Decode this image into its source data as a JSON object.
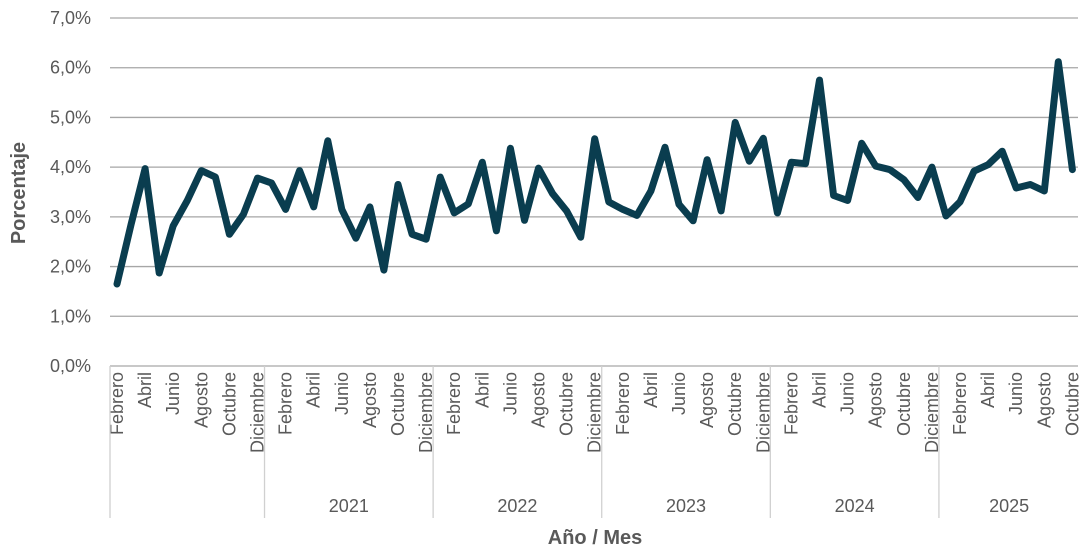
{
  "chart_data": {
    "type": "line",
    "xlabel": "Año / Mes",
    "ylabel": "Porcentaje",
    "ylim": [
      0,
      7
    ],
    "y_ticks": [
      "0,0%",
      "1,0%",
      "2,0%",
      "3,0%",
      "4,0%",
      "5,0%",
      "6,0%",
      "7,0%"
    ],
    "grid": true,
    "legend": "none",
    "month_labels": [
      "Febrero",
      "Abril",
      "Junio",
      "Agosto",
      "Octubre",
      "Diciembre"
    ],
    "years": [
      {
        "label": "",
        "months": 11
      },
      {
        "label": "2021",
        "months": 12
      },
      {
        "label": "2022",
        "months": 12
      },
      {
        "label": "2023",
        "months": 12
      },
      {
        "label": "2024",
        "months": 12
      },
      {
        "label": "2025",
        "months": 10
      }
    ],
    "series": [
      {
        "color": "#0a3d4f",
        "values": [
          1.65,
          2.85,
          3.97,
          1.87,
          2.82,
          3.33,
          3.93,
          3.8,
          2.65,
          3.05,
          3.78,
          3.68,
          3.15,
          3.93,
          3.2,
          4.53,
          3.15,
          2.57,
          3.2,
          1.93,
          3.65,
          2.65,
          2.55,
          3.8,
          3.08,
          3.26,
          4.1,
          2.72,
          4.38,
          2.93,
          3.98,
          3.47,
          3.12,
          2.59,
          4.57,
          3.3,
          3.15,
          3.03,
          3.52,
          4.4,
          3.25,
          2.92,
          4.15,
          3.12,
          4.9,
          4.12,
          4.58,
          3.08,
          4.1,
          4.07,
          5.75,
          3.43,
          3.33,
          4.48,
          4.02,
          3.95,
          3.75,
          3.39,
          4.0,
          3.02,
          3.3,
          3.92,
          4.05,
          4.32,
          3.58,
          3.65,
          3.52,
          6.12,
          3.95
        ]
      }
    ]
  }
}
